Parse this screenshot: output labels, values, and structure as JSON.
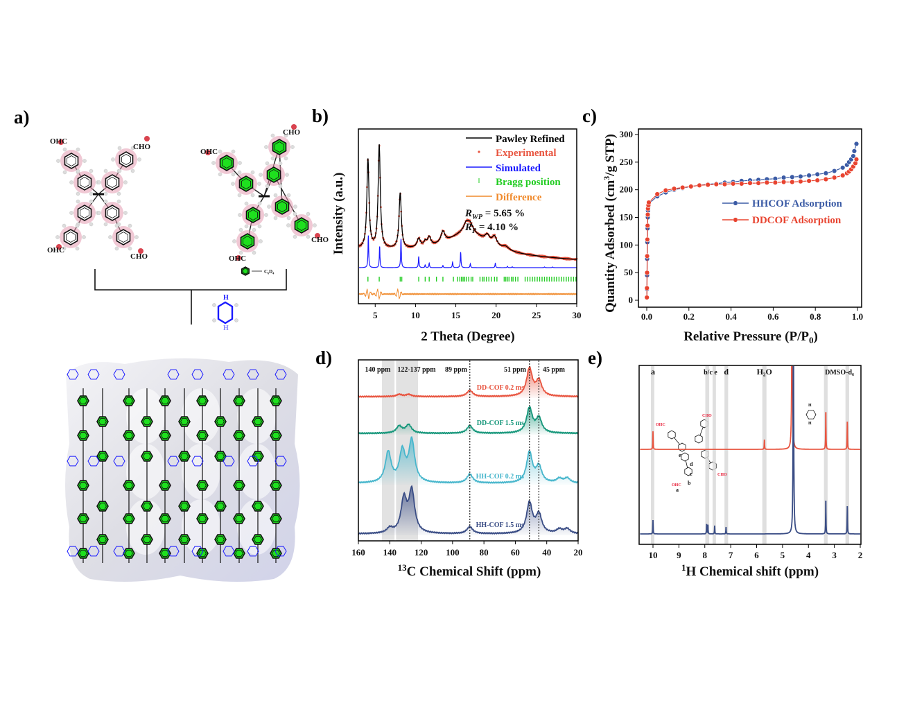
{
  "panel_labels": [
    "a)",
    "b)",
    "c)",
    "d)",
    "e)"
  ],
  "panel_a": {
    "left_monomer_labels": [
      "OHC",
      "CHO",
      "OHC",
      "CHO"
    ],
    "right_monomer_labels": [
      "OHC",
      "CHO",
      "CHO",
      "OHC"
    ],
    "legend_label": "C₆D₄",
    "linker_atom_label": "H",
    "colors": {
      "deuterated_ring": "#1ee01e",
      "hydrogen_shadow": "#e39ab0",
      "linker": "#1a1aff"
    }
  },
  "chart_data": [
    {
      "panel": "b",
      "type": "line",
      "xlabel": "2 Theta (Degree)",
      "ylabel": "Intensity (a.u.)",
      "xlim": [
        3,
        30
      ],
      "xticks": [
        5,
        10,
        15,
        20,
        25,
        30
      ],
      "legend": [
        "Pawley Refined",
        "Experimental",
        "Simulated",
        "Bragg position",
        "Difference"
      ],
      "legend_placement": "top-right",
      "annotations": {
        "rwp_label": "R",
        "rwp_sub": "WP",
        "rwp_value": " = 5.65 %",
        "rp_label": "R",
        "rp_sub": "P",
        "rp_value": " = 4.10 %"
      },
      "colors": {
        "pawley": "#000000",
        "experimental": "#e8543f",
        "simulated": "#1a1aff",
        "bragg": "#22cc22",
        "difference": "#f08a2c"
      },
      "pawley_peaks_2theta_height_width": [
        [
          4.1,
          80,
          0.16
        ],
        [
          5.5,
          93,
          0.16
        ],
        [
          8.1,
          50,
          0.17
        ],
        [
          10.4,
          8,
          0.25
        ],
        [
          11.2,
          4,
          0.2
        ],
        [
          11.7,
          8,
          0.25
        ],
        [
          13.4,
          10,
          0.3
        ],
        [
          16.3,
          8,
          0.4
        ],
        [
          16.8,
          7,
          0.4
        ],
        [
          18.9,
          6,
          0.35
        ],
        [
          19.8,
          8,
          0.35
        ],
        [
          21.2,
          3,
          0.5
        ]
      ],
      "pawley_background": {
        "start": 10,
        "end": 0,
        "hump_center": 16.5,
        "hump_height": 20,
        "hump_width": 3.2
      },
      "simulated_peaks_2theta_height": [
        [
          4.15,
          29
        ],
        [
          5.55,
          19
        ],
        [
          8.2,
          26
        ],
        [
          10.4,
          10
        ],
        [
          11.2,
          2.5
        ],
        [
          11.7,
          4
        ],
        [
          13.4,
          2
        ],
        [
          14.6,
          5
        ],
        [
          15.6,
          14
        ],
        [
          16.8,
          3.5
        ],
        [
          19.9,
          4
        ],
        [
          21.4,
          1.2
        ],
        [
          22,
          0.8
        ],
        [
          26,
          0.6
        ],
        [
          27,
          0.6
        ]
      ],
      "bragg_positions": [
        4.1,
        5.5,
        8.1,
        8.3,
        10.4,
        11.2,
        11.7,
        12.6,
        13.4,
        14.7,
        15.2,
        15.5,
        15.7,
        15.9,
        16.1,
        16.3,
        16.6,
        16.9,
        17.1,
        18.0,
        18.3,
        18.5,
        18.8,
        19.1,
        19.4,
        19.8,
        20.1,
        21.0,
        21.2,
        21.4,
        21.6,
        21.9,
        22.1,
        22.4,
        22.7,
        23.6,
        23.9,
        24.2,
        24.5,
        24.8,
        25.1,
        25.4,
        25.7,
        26.0,
        26.3,
        26.6,
        26.9,
        27.2,
        27.5,
        27.8,
        28.1,
        28.4,
        28.7,
        29.0,
        29.3,
        29.6,
        29.9
      ]
    },
    {
      "panel": "c",
      "type": "line",
      "xlabel": "Relative Pressure (P/P",
      "xlabel_sub": "0",
      "xlabel_end": ")",
      "ylabel": "Quantity Adsorbed (cm",
      "ylabel_sup": "3",
      "ylabel_end": "/g STP)",
      "xlim": [
        0,
        1.0
      ],
      "ylim": [
        0,
        300
      ],
      "xticks": [
        "0.0",
        "0.2",
        "0.4",
        "0.6",
        "0.8",
        "1.0"
      ],
      "yticks": [
        "0",
        "50",
        "100",
        "150",
        "200",
        "250",
        "300"
      ],
      "legend_placement": "center-right",
      "series": [
        {
          "name": "HHCOF Adsorption",
          "color": "#3b5ba5",
          "x": [
            0.0005,
            0.001,
            0.0015,
            0.002,
            0.003,
            0.004,
            0.005,
            0.006,
            0.008,
            0.01,
            0.05,
            0.09,
            0.13,
            0.17,
            0.21,
            0.25,
            0.29,
            0.33,
            0.37,
            0.41,
            0.45,
            0.49,
            0.53,
            0.57,
            0.61,
            0.65,
            0.69,
            0.73,
            0.77,
            0.81,
            0.85,
            0.89,
            0.93,
            0.95,
            0.96,
            0.97,
            0.98,
            0.985,
            0.995
          ],
          "y": [
            5,
            20,
            45,
            75,
            105,
            130,
            150,
            162,
            170,
            175,
            188,
            195,
            200,
            203,
            206,
            208,
            210,
            211,
            213,
            214,
            216,
            217,
            218,
            219,
            220,
            222,
            223,
            224,
            226,
            228,
            230,
            234,
            240,
            245,
            250,
            255,
            261,
            270,
            283
          ]
        },
        {
          "name": "DDCOF Adsorption",
          "color": "#e8432f",
          "x": [
            0.0005,
            0.001,
            0.0015,
            0.002,
            0.003,
            0.004,
            0.005,
            0.006,
            0.008,
            0.01,
            0.05,
            0.09,
            0.13,
            0.17,
            0.21,
            0.25,
            0.29,
            0.33,
            0.37,
            0.41,
            0.45,
            0.49,
            0.53,
            0.57,
            0.61,
            0.65,
            0.69,
            0.73,
            0.77,
            0.81,
            0.85,
            0.89,
            0.93,
            0.95,
            0.96,
            0.97,
            0.98,
            0.99,
            0.995
          ],
          "y": [
            5,
            22,
            50,
            80,
            110,
            135,
            155,
            166,
            172,
            177,
            192,
            199,
            202,
            204,
            206,
            208,
            209,
            210,
            210,
            211,
            211,
            212,
            212,
            213,
            213,
            214,
            214,
            215,
            216,
            217,
            219,
            222,
            226,
            230,
            233,
            237,
            242,
            248,
            255
          ]
        }
      ]
    },
    {
      "panel": "d",
      "type": "line",
      "xlabel_sup": "13",
      "xlabel": "C Chemical Shift (ppm)",
      "xlim": [
        160,
        20
      ],
      "xticks": [
        160,
        140,
        120,
        100,
        80,
        60,
        40,
        20
      ],
      "bands_ppm": [
        [
          137,
          145
        ],
        [
          122,
          136
        ]
      ],
      "band_labels": [
        "140 ppm",
        "122-137 ppm"
      ],
      "reference_lines_ppm": [
        89,
        51,
        45
      ],
      "reference_labels": [
        "89 ppm",
        "51 ppm",
        "45 ppm"
      ],
      "series": [
        {
          "name": "DD-COF 0.2 ms",
          "color": "#e8543f",
          "peaks_ppm_height": [
            [
              134,
              3
            ],
            [
              128,
              3
            ],
            [
              89,
              9
            ],
            [
              51,
              40
            ],
            [
              45,
              22
            ]
          ]
        },
        {
          "name": "DD-COF 1.5 ms",
          "color": "#17977b",
          "peaks_ppm_height": [
            [
              134,
              10
            ],
            [
              128,
              12
            ],
            [
              89,
              11
            ],
            [
              51,
              36
            ],
            [
              45,
              21
            ]
          ]
        },
        {
          "name": "HH-COF 0.2 ms",
          "color": "#47b6cc",
          "peaks_ppm_height": [
            [
              141,
              44
            ],
            [
              132,
              44
            ],
            [
              126,
              60
            ],
            [
              89,
              13
            ],
            [
              51,
              44
            ],
            [
              45,
              23
            ],
            [
              32,
              6
            ],
            [
              27,
              7
            ]
          ]
        },
        {
          "name": "HH-COF 1.5 ms",
          "color": "#3a4d85",
          "peaks_ppm_height": [
            [
              140,
              7
            ],
            [
              131,
              48
            ],
            [
              126,
              60
            ],
            [
              89,
              10
            ],
            [
              51,
              44
            ],
            [
              45,
              27
            ],
            [
              32,
              6
            ],
            [
              27,
              7
            ]
          ]
        }
      ]
    },
    {
      "panel": "e",
      "type": "line",
      "xlabel_sup": "1",
      "xlabel": "H Chemical shift (ppm)",
      "xlim": [
        10.5,
        2
      ],
      "xticks": [
        10,
        9,
        8,
        7,
        6,
        5,
        4,
        3,
        2
      ],
      "bands_ppm": [
        [
          9.95,
          10.08
        ],
        [
          7.83,
          7.98
        ],
        [
          7.57,
          7.7
        ],
        [
          7.1,
          7.24
        ],
        [
          5.62,
          5.78
        ],
        [
          3.26,
          3.4
        ],
        [
          2.43,
          2.57
        ]
      ],
      "band_labels": [
        {
          "text": "a",
          "ppm": 10.0
        },
        {
          "text": "b/c e",
          "ppm": 7.78
        },
        {
          "text": "d",
          "ppm": 7.17
        },
        {
          "text": "H₂O",
          "ppm": 5.7
        },
        {
          "text": "DMSO-d₆",
          "ppm": 2.8
        }
      ],
      "inset_labels": {
        "cho": "CHO",
        "ohc": "OHC",
        "sites": [
          "e",
          "d",
          "c",
          "b",
          "a"
        ],
        "nh": "H"
      },
      "series": [
        {
          "color": "#e8543f",
          "peaks_ppm_height": [
            [
              10.0,
              26
            ],
            [
              5.7,
              14
            ],
            [
              4.63,
              400
            ],
            [
              3.33,
              56
            ],
            [
              2.5,
              40
            ]
          ]
        },
        {
          "color": "#3a4d85",
          "peaks_ppm_height": [
            [
              10.0,
              20
            ],
            [
              7.93,
              14
            ],
            [
              7.88,
              13
            ],
            [
              7.62,
              12
            ],
            [
              7.18,
              10
            ],
            [
              4.58,
              400
            ],
            [
              3.33,
              50
            ],
            [
              2.5,
              40
            ]
          ]
        }
      ]
    }
  ]
}
